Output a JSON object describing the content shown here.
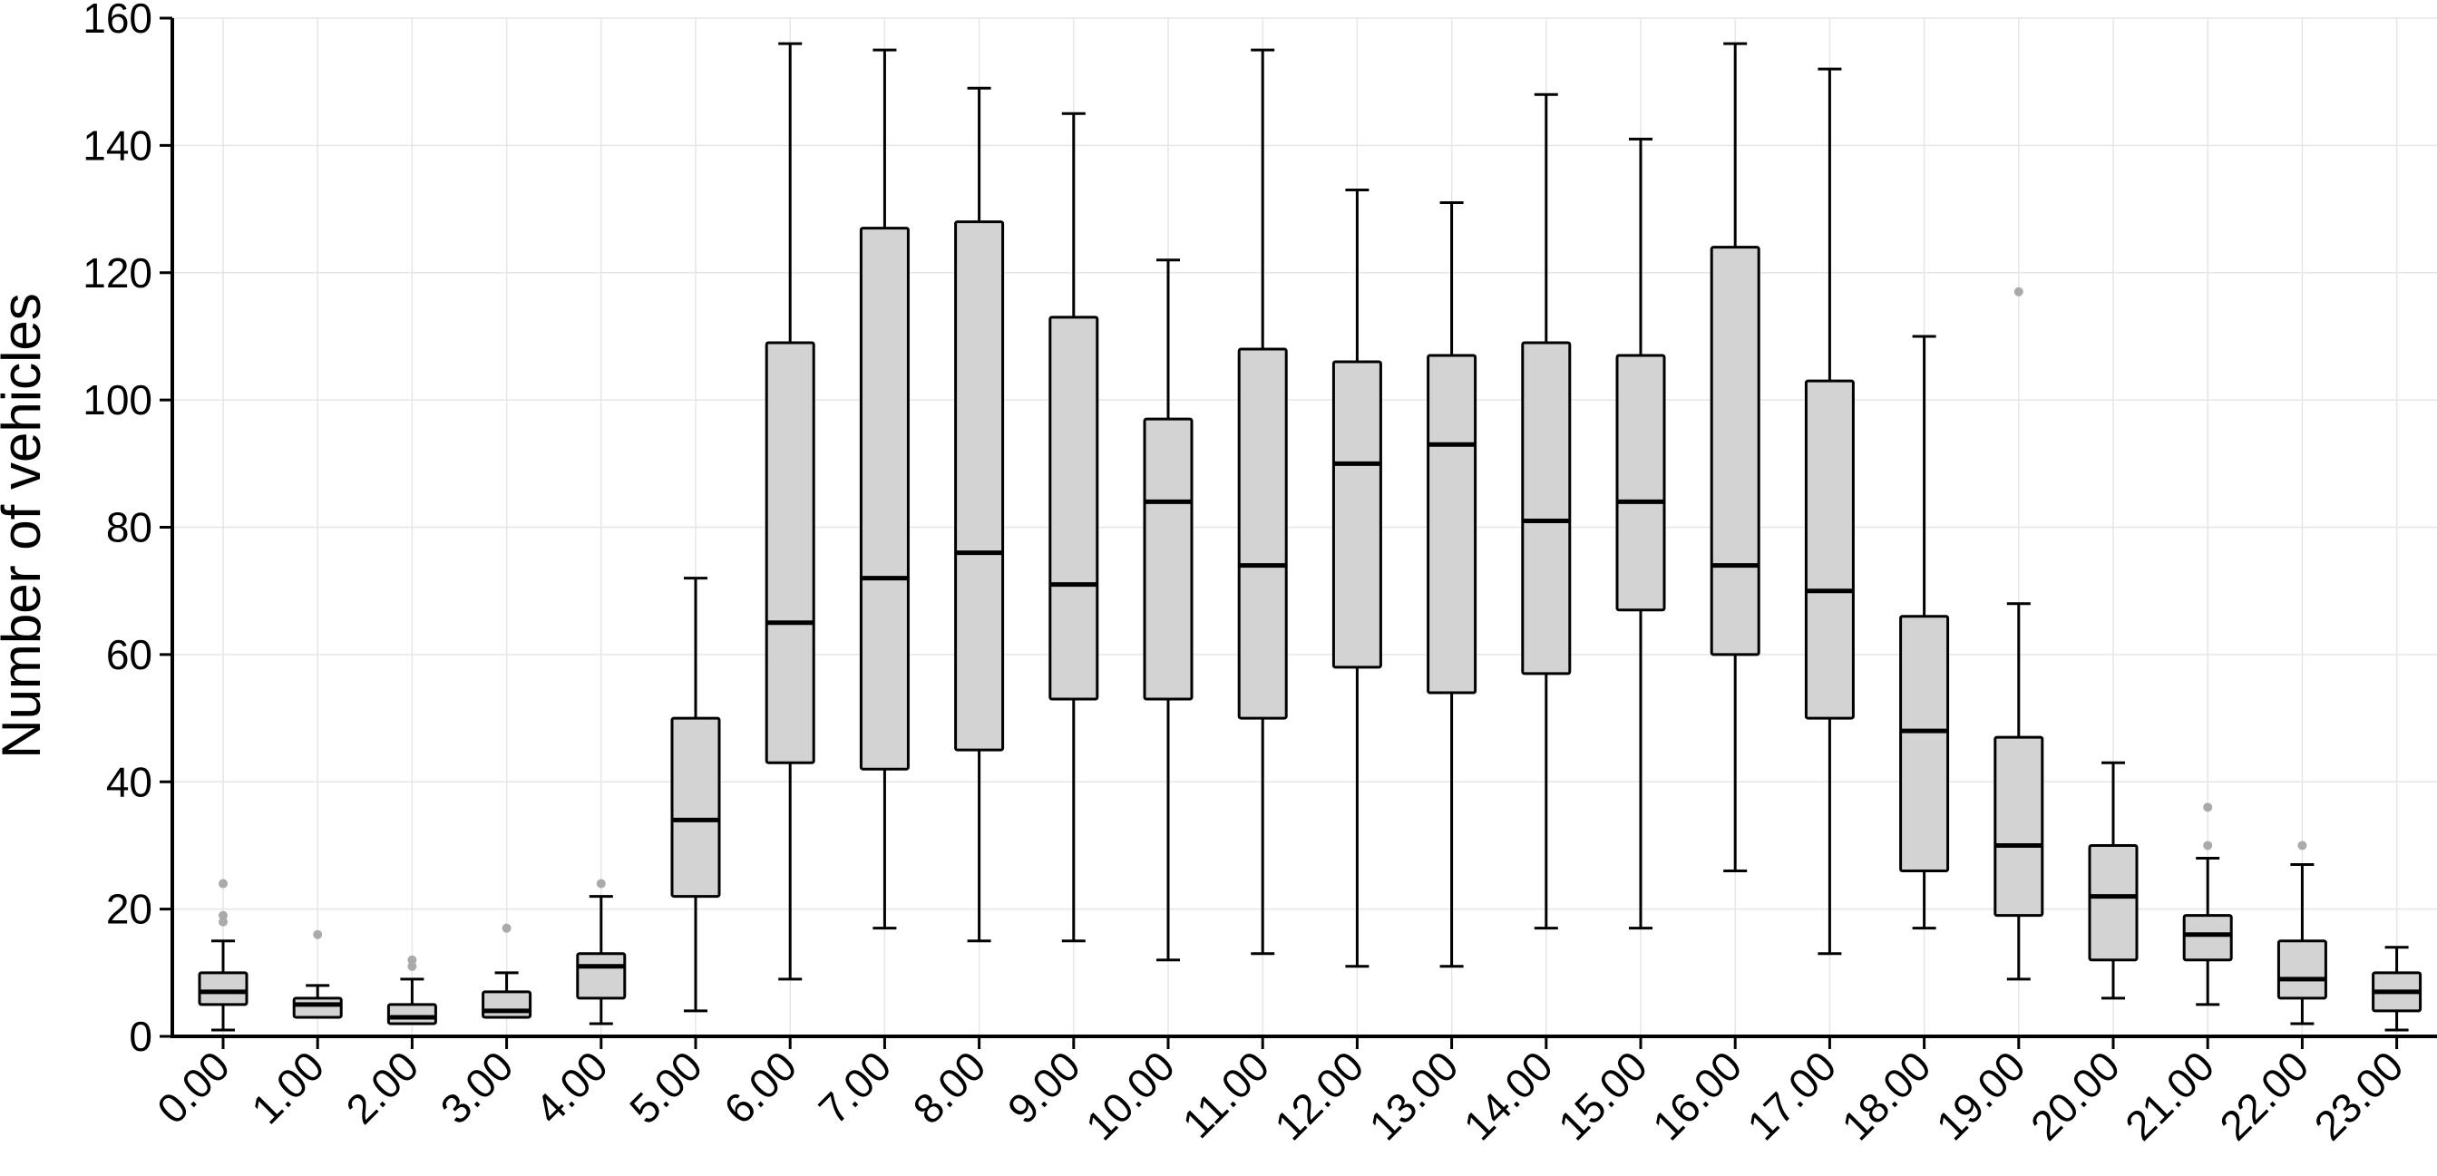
{
  "chart_data": {
    "type": "box",
    "title": "",
    "xlabel": "",
    "ylabel": "Number of vehicles",
    "ylim": [
      0,
      160
    ],
    "yticks": [
      0,
      20,
      40,
      60,
      80,
      100,
      120,
      140,
      160
    ],
    "grid": true,
    "colors": {
      "box_fill": "#d3d3d3",
      "stroke": "#000000",
      "outlier": "#aaaaaa",
      "grid": "#e6e6e6"
    },
    "categories": [
      "0.00",
      "1.00",
      "2.00",
      "3.00",
      "4.00",
      "5.00",
      "6.00",
      "7.00",
      "8.00",
      "9.00",
      "10.00",
      "11.00",
      "12.00",
      "13.00",
      "14.00",
      "15.00",
      "16.00",
      "17.00",
      "18.00",
      "19.00",
      "20.00",
      "21.00",
      "22.00",
      "23.00"
    ],
    "boxes": [
      {
        "min": 1,
        "q1": 5,
        "median": 7,
        "q3": 10,
        "max": 15,
        "outliers": [
          18,
          19,
          24
        ]
      },
      {
        "min": 3,
        "q1": 3,
        "median": 5,
        "q3": 6,
        "max": 8,
        "outliers": [
          16
        ]
      },
      {
        "min": 2,
        "q1": 2,
        "median": 3,
        "q3": 5,
        "max": 9,
        "outliers": [
          11,
          12
        ]
      },
      {
        "min": 3,
        "q1": 3,
        "median": 4,
        "q3": 7,
        "max": 10,
        "outliers": [
          17
        ]
      },
      {
        "min": 2,
        "q1": 6,
        "median": 11,
        "q3": 13,
        "max": 22,
        "outliers": [
          24
        ]
      },
      {
        "min": 4,
        "q1": 22,
        "median": 34,
        "q3": 50,
        "max": 72,
        "outliers": []
      },
      {
        "min": 9,
        "q1": 43,
        "median": 65,
        "q3": 109,
        "max": 156,
        "outliers": []
      },
      {
        "min": 17,
        "q1": 42,
        "median": 72,
        "q3": 127,
        "max": 155,
        "outliers": []
      },
      {
        "min": 15,
        "q1": 45,
        "median": 76,
        "q3": 128,
        "max": 149,
        "outliers": []
      },
      {
        "min": 15,
        "q1": 53,
        "median": 71,
        "q3": 113,
        "max": 145,
        "outliers": []
      },
      {
        "min": 12,
        "q1": 53,
        "median": 84,
        "q3": 97,
        "max": 122,
        "outliers": []
      },
      {
        "min": 13,
        "q1": 50,
        "median": 74,
        "q3": 108,
        "max": 155,
        "outliers": []
      },
      {
        "min": 11,
        "q1": 58,
        "median": 90,
        "q3": 106,
        "max": 133,
        "outliers": []
      },
      {
        "min": 11,
        "q1": 54,
        "median": 93,
        "q3": 107,
        "max": 131,
        "outliers": []
      },
      {
        "min": 17,
        "q1": 57,
        "median": 81,
        "q3": 109,
        "max": 148,
        "outliers": []
      },
      {
        "min": 17,
        "q1": 67,
        "median": 84,
        "q3": 107,
        "max": 141,
        "outliers": []
      },
      {
        "min": 26,
        "q1": 60,
        "median": 74,
        "q3": 124,
        "max": 156,
        "outliers": []
      },
      {
        "min": 13,
        "q1": 50,
        "median": 70,
        "q3": 103,
        "max": 152,
        "outliers": []
      },
      {
        "min": 17,
        "q1": 26,
        "median": 48,
        "q3": 66,
        "max": 110,
        "outliers": []
      },
      {
        "min": 9,
        "q1": 19,
        "median": 30,
        "q3": 47,
        "max": 68,
        "outliers": [
          117
        ]
      },
      {
        "min": 6,
        "q1": 12,
        "median": 22,
        "q3": 30,
        "max": 43,
        "outliers": []
      },
      {
        "min": 5,
        "q1": 12,
        "median": 16,
        "q3": 19,
        "max": 28,
        "outliers": [
          30,
          36
        ]
      },
      {
        "min": 2,
        "q1": 6,
        "median": 9,
        "q3": 15,
        "max": 27,
        "outliers": [
          30
        ]
      },
      {
        "min": 1,
        "q1": 4,
        "median": 7,
        "q3": 10,
        "max": 14,
        "outliers": []
      }
    ]
  }
}
